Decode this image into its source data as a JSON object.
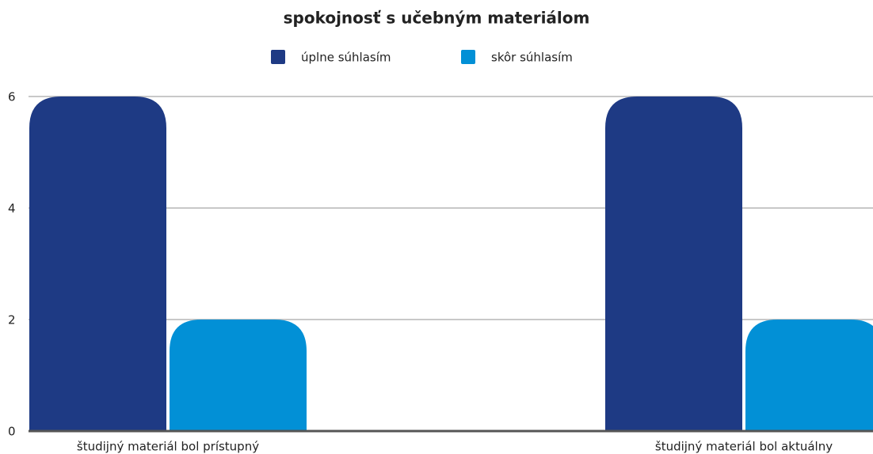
{
  "chart_data": {
    "type": "bar",
    "title": "spokojnosť s učebným materiálom",
    "categories": [
      "študijný materiál bol prístupný",
      "študijný materiál bol aktuálny"
    ],
    "series": [
      {
        "name": "úplne súhlasím",
        "color": "#1e3a84",
        "values": [
          6,
          6
        ]
      },
      {
        "name": "skôr súhlasím",
        "color": "#0290d6",
        "values": [
          2,
          2
        ]
      }
    ],
    "ylim": [
      0,
      6
    ],
    "yticks": [
      0,
      2,
      4,
      6
    ],
    "grid": true,
    "legend": "top"
  }
}
